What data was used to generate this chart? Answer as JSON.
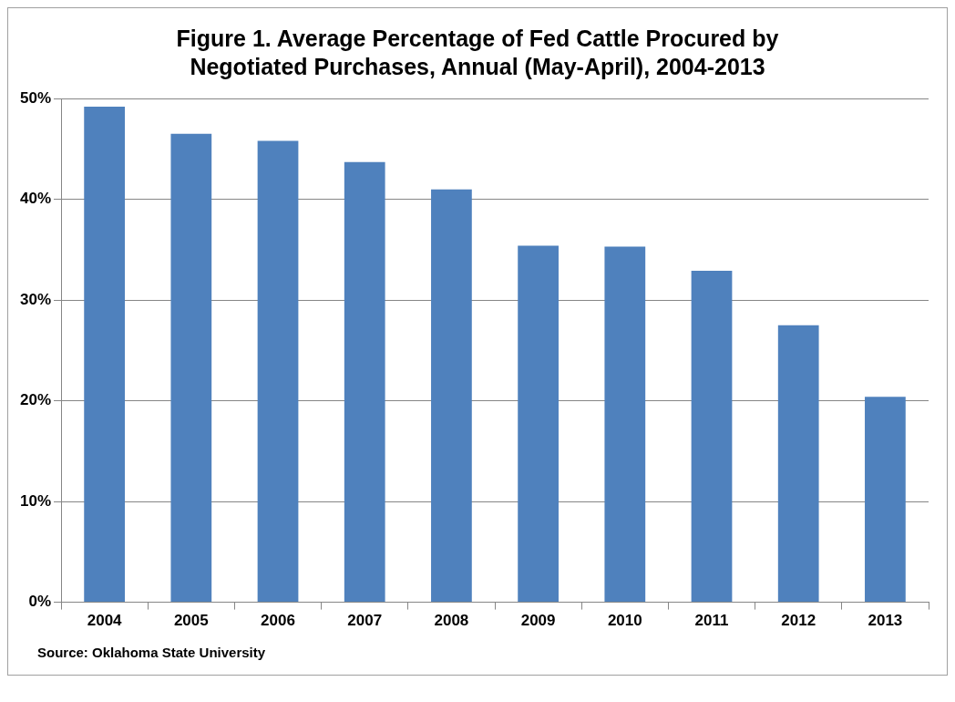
{
  "chart_data": {
    "type": "bar",
    "title": "Figure 1.  Average Percentage of Fed Cattle Procured by Negotiated Purchases, Annual (May-April), 2004-2013",
    "categories": [
      "2004",
      "2005",
      "2006",
      "2007",
      "2008",
      "2009",
      "2010",
      "2011",
      "2012",
      "2013"
    ],
    "values": [
      49.2,
      46.5,
      45.8,
      43.7,
      41.0,
      35.4,
      35.3,
      32.9,
      27.5,
      20.4
    ],
    "color": "#4f81bd",
    "ylim": [
      0,
      50
    ],
    "yticks": [
      {
        "value": 0,
        "label": "0%"
      },
      {
        "value": 10,
        "label": "10%"
      },
      {
        "value": 20,
        "label": "20%"
      },
      {
        "value": 30,
        "label": "30%"
      },
      {
        "value": 40,
        "label": "40%"
      },
      {
        "value": 50,
        "label": "50%"
      }
    ],
    "grid": "y",
    "annotations": [
      "Source:  Oklahoma State University"
    ]
  }
}
